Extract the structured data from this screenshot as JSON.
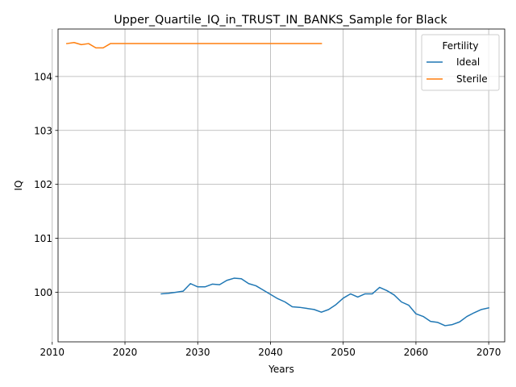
{
  "chart_data": {
    "type": "line",
    "title": "Upper_Quartile_IQ_in_TRUST_IN_BANKS_Sample for Black",
    "xlabel": "Years",
    "ylabel": "IQ",
    "xlim": [
      2010.8,
      2072.2
    ],
    "ylim": [
      99.08,
      104.88
    ],
    "xticks": [
      2010,
      2020,
      2030,
      2040,
      2050,
      2060,
      2070
    ],
    "yticks": [
      100,
      101,
      102,
      103,
      104
    ],
    "grid": true,
    "legend": {
      "title": "Fertility",
      "position": "top-right"
    },
    "series": [
      {
        "name": "Ideal",
        "color": "#1f77b4",
        "x": [
          2025,
          2026,
          2027,
          2028,
          2029,
          2030,
          2031,
          2032,
          2033,
          2034,
          2035,
          2036,
          2037,
          2038,
          2039,
          2040,
          2041,
          2042,
          2043,
          2044,
          2045,
          2046,
          2047,
          2048,
          2049,
          2050,
          2051,
          2052,
          2053,
          2054,
          2055,
          2056,
          2057,
          2058,
          2059,
          2060,
          2061,
          2062,
          2063,
          2064,
          2065,
          2066,
          2067,
          2068,
          2069,
          2070
        ],
        "y": [
          99.97,
          99.98,
          100.0,
          100.02,
          100.16,
          100.1,
          100.1,
          100.15,
          100.14,
          100.22,
          100.26,
          100.25,
          100.16,
          100.12,
          100.04,
          99.96,
          99.88,
          99.82,
          99.73,
          99.72,
          99.7,
          99.68,
          99.63,
          99.68,
          99.77,
          99.89,
          99.97,
          99.91,
          99.97,
          99.97,
          100.09,
          100.03,
          99.95,
          99.82,
          99.76,
          99.6,
          99.55,
          99.46,
          99.44,
          99.38,
          99.4,
          99.45,
          99.55,
          99.62,
          99.68,
          99.71
        ]
      },
      {
        "name": "Sterile",
        "color": "#ff7f0e",
        "x": [
          2012,
          2013,
          2014,
          2015,
          2016,
          2017,
          2018,
          2019,
          2020,
          2021,
          2022,
          2023,
          2024,
          2025,
          2026,
          2027,
          2028,
          2029,
          2030,
          2031,
          2032,
          2033,
          2034,
          2035,
          2036,
          2037,
          2038,
          2039,
          2040,
          2041,
          2042,
          2043,
          2044,
          2045,
          2046,
          2047
        ],
        "y": [
          104.61,
          104.63,
          104.59,
          104.61,
          104.53,
          104.53,
          104.61,
          104.61,
          104.61,
          104.61,
          104.61,
          104.61,
          104.61,
          104.61,
          104.61,
          104.61,
          104.61,
          104.61,
          104.61,
          104.61,
          104.61,
          104.61,
          104.61,
          104.61,
          104.61,
          104.61,
          104.61,
          104.61,
          104.61,
          104.61,
          104.61,
          104.61,
          104.61,
          104.61,
          104.61,
          104.61
        ]
      }
    ]
  }
}
